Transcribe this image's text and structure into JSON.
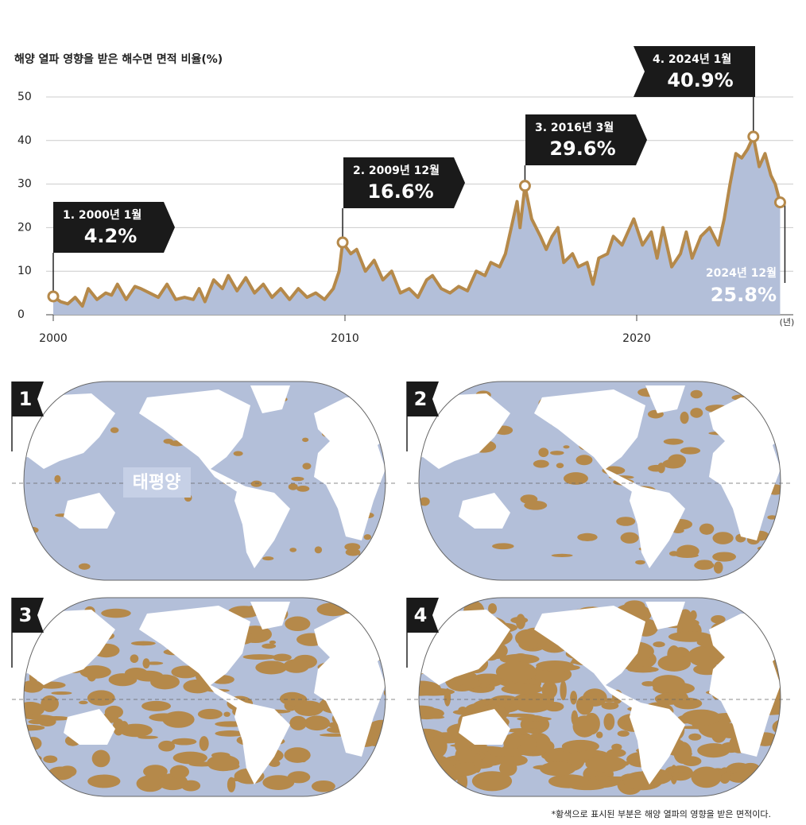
{
  "chart_data": {
    "type": "area",
    "title": "해양 열파 영향을 받은 해수면 면적 비율(%)",
    "x_label": "(년)",
    "x": [
      2000.0,
      2000.25,
      2000.5,
      2000.75,
      2001.0,
      2001.2,
      2001.5,
      2001.8,
      2002.0,
      2002.2,
      2002.5,
      2002.8,
      2003.0,
      2003.3,
      2003.6,
      2003.9,
      2004.2,
      2004.5,
      2004.8,
      2005.0,
      2005.2,
      2005.5,
      2005.8,
      2006.0,
      2006.3,
      2006.6,
      2006.9,
      2007.2,
      2007.5,
      2007.8,
      2008.1,
      2008.4,
      2008.7,
      2009.0,
      2009.3,
      2009.6,
      2009.8,
      2009.92,
      2010.2,
      2010.4,
      2010.7,
      2011.0,
      2011.3,
      2011.6,
      2011.9,
      2012.2,
      2012.5,
      2012.8,
      2013.0,
      2013.3,
      2013.6,
      2013.9,
      2014.2,
      2014.5,
      2014.8,
      2015.0,
      2015.3,
      2015.5,
      2015.7,
      2015.9,
      2016.0,
      2016.17,
      2016.4,
      2016.7,
      2016.9,
      2017.1,
      2017.3,
      2017.5,
      2017.8,
      2018.0,
      2018.3,
      2018.5,
      2018.7,
      2019.0,
      2019.2,
      2019.5,
      2019.7,
      2019.9,
      2020.2,
      2020.5,
      2020.7,
      2020.9,
      2021.2,
      2021.5,
      2021.7,
      2021.9,
      2022.2,
      2022.5,
      2022.8,
      2023.0,
      2023.2,
      2023.4,
      2023.6,
      2023.8,
      2024.0,
      2024.2,
      2024.4,
      2024.6,
      2024.75,
      2024.917
    ],
    "values": [
      4.2,
      3,
      2.5,
      4,
      2,
      6,
      3.5,
      5,
      4.5,
      7,
      3.5,
      6.5,
      6,
      5,
      4,
      7,
      3.5,
      4,
      3.5,
      6,
      3,
      8,
      6,
      9,
      5.5,
      8.5,
      5,
      7,
      4,
      6,
      3.5,
      6,
      4,
      5,
      3.5,
      6,
      10,
      16.6,
      14,
      15,
      10,
      12.5,
      8,
      10,
      5,
      6,
      4,
      8,
      9,
      6,
      5,
      6.5,
      5.5,
      10,
      9,
      12,
      11,
      14,
      20,
      26,
      20,
      29.6,
      22,
      18,
      15,
      18,
      20,
      12,
      14,
      11,
      12,
      7,
      13,
      14,
      18,
      16,
      19,
      22,
      16,
      19,
      13,
      20,
      11,
      14,
      19,
      13,
      18,
      20,
      16,
      22,
      30,
      37,
      36,
      38,
      40.9,
      34,
      37,
      32,
      30,
      25.8
    ],
    "color": "#b3bfd9",
    "line_color": "#b5894a",
    "xlim": [
      2000,
      2025
    ],
    "ylim": [
      0,
      50
    ],
    "xticks": [
      2000,
      2010,
      2020
    ],
    "yticks": [
      0,
      10,
      20,
      30,
      40,
      50
    ],
    "grid": true,
    "highlights": {
      "labels": [
        "1. 2000년 1월",
        "2. 2009년 12월",
        "3. 2016년 3월",
        "4. 2024년 1월",
        "2024년 12월"
      ],
      "x": [
        2000.0,
        2009.92,
        2016.17,
        2024.0,
        2024.917
      ],
      "values": [
        4.2,
        16.6,
        29.6,
        40.9,
        25.8
      ],
      "value_labels": [
        "4.2%",
        "16.6%",
        "29.6%",
        "40.9%",
        "25.8%"
      ]
    }
  },
  "maps": {
    "panels": [
      "1",
      "2",
      "3",
      "4"
    ],
    "ocean_label": "태평양",
    "footnote": "*황색으로 표시된 부분은 해양 열파의 영향을 받은 면적이다."
  }
}
